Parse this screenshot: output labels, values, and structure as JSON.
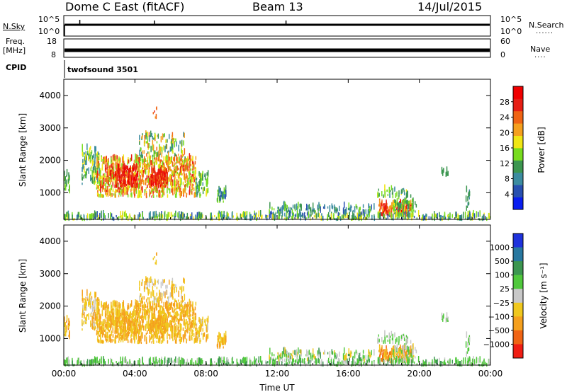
{
  "header": {
    "station": "Dome C East (fitACF)",
    "beam": "Beam 13",
    "date": "14/Jul/2015"
  },
  "strip_labels": {
    "nsky": "N.Sky",
    "nsearch": "N.Search",
    "freq_top": "Freq.",
    "freq_unit": "[MHz]",
    "nave": "Nave",
    "cpid": "CPID",
    "cpid_value": "twofsound 3501",
    "dots": "......",
    "dots_short": "...."
  },
  "strips": {
    "noise": {
      "left_ticks": [
        "10^5",
        "10^0"
      ],
      "right_ticks": [
        "10^5",
        "10^0"
      ]
    },
    "freq": {
      "left_ticks": [
        "18",
        "8"
      ],
      "right_ticks": [
        "60",
        "0"
      ]
    }
  },
  "chart_data": [
    {
      "type": "heatmap",
      "name": "power",
      "ylabel": "Slant Range [km]",
      "ylim": [
        180,
        4500
      ],
      "yticks": [
        1000,
        2000,
        3000,
        4000
      ],
      "xlim": [
        0,
        24
      ],
      "xticks": [
        "00:00",
        "04:00",
        "08:00",
        "12:00",
        "16:00",
        "20:00",
        "00:00"
      ],
      "colorbar": {
        "label": "Power [dB]",
        "ticks": [
          "4",
          "8",
          "12",
          "16",
          "20",
          "24",
          "28"
        ],
        "colors": [
          "#0a1ef0",
          "#2850b0",
          "#3c8ca0",
          "#3c9650",
          "#78dc1e",
          "#f0e614",
          "#f5a01e",
          "#f06414",
          "#e61e14",
          "#f00000"
        ]
      }
    },
    {
      "type": "heatmap",
      "name": "velocity",
      "ylabel": "Slant Range [km]",
      "xlabel": "Time UT",
      "ylim": [
        180,
        4500
      ],
      "yticks": [
        1000,
        2000,
        3000,
        4000
      ],
      "xlim": [
        0,
        24
      ],
      "xticks": [
        "00:00",
        "04:00",
        "08:00",
        "12:00",
        "16:00",
        "20:00",
        "00:00"
      ],
      "colorbar": {
        "label": "Velocity [m s⁻¹]",
        "ticks": [
          "1000",
          "500",
          "100",
          "25",
          "−25",
          "−100",
          "−500",
          "−1000"
        ],
        "colors": [
          "#1e32dc",
          "#2878a0",
          "#3c9650",
          "#50c83c",
          "#c8c8c8",
          "#f0c81e",
          "#f5a01e",
          "#f06414",
          "#f01e14"
        ]
      }
    }
  ]
}
